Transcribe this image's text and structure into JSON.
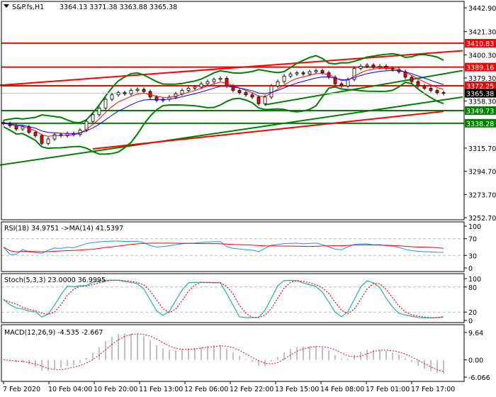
{
  "header": {
    "symbol": "S&P.fs,H1",
    "ohlc": "3364.13 3371.38 3363.88 3365.38"
  },
  "colors": {
    "red": "#ff0000",
    "green": "#008000",
    "blue": "#0000ff",
    "teal": "#20b2aa",
    "black": "#000000"
  },
  "chart_data": [
    {
      "type": "candlestick",
      "title": "S&P.fs,H1",
      "ylim": [
        3252.7,
        3442.9
      ],
      "y_ticks": [
        3442.9,
        3421.3,
        3400.3,
        3379.3,
        3358.3,
        3315.7,
        3294.7,
        3273.7,
        3252.7
      ],
      "x_ticks": [
        "7 Feb 2020",
        "10 Feb 04:00",
        "10 Feb 20:00",
        "11 Feb 13:00",
        "12 Feb 06:00",
        "12 Feb 22:00",
        "13 Feb 15:00",
        "14 Feb 08:00",
        "17 Feb 01:00",
        "17 Feb 17:00"
      ],
      "close": [
        3338,
        3336,
        3333,
        3335,
        3330,
        3327,
        3320,
        3324,
        3328,
        3327,
        3329,
        3328,
        3332,
        3340,
        3346,
        3352,
        3360,
        3364,
        3366,
        3365,
        3368,
        3369,
        3367,
        3362,
        3359,
        3360,
        3362,
        3365,
        3368,
        3370,
        3371,
        3374,
        3376,
        3378,
        3379,
        3372,
        3368,
        3366,
        3364,
        3362,
        3356,
        3362,
        3372,
        3376,
        3381,
        3383,
        3384,
        3383,
        3385,
        3386,
        3384,
        3380,
        3374,
        3372,
        3378,
        3388,
        3390,
        3391,
        3389,
        3390,
        3388,
        3387,
        3385,
        3380,
        3376,
        3372,
        3370,
        3368,
        3366,
        3365.38
      ],
      "last_price": {
        "value": "3365.38"
      },
      "levels": [
        {
          "value": "3410.83",
          "color": "red"
        },
        {
          "value": "3389.16",
          "color": "red"
        },
        {
          "value": "3372.25",
          "color": "red"
        },
        {
          "value": "3349.73",
          "color": "green"
        },
        {
          "value": "3338.28",
          "color": "green"
        }
      ],
      "trendlines": [
        {
          "from": [
            -1,
            3372.5
          ],
          "to": [
            72,
            3404
          ],
          "color": "red"
        },
        {
          "from": [
            -1,
            3300
          ],
          "to": [
            72,
            3362
          ],
          "color": "green"
        },
        {
          "from": [
            14,
            3315
          ],
          "to": [
            69,
            3349
          ],
          "color": "red"
        },
        {
          "from": [
            41,
            3355
          ],
          "to": [
            72,
            3386
          ],
          "color": "green"
        }
      ]
    },
    {
      "type": "line",
      "title": "RSI(18) 34.9751  ->MA(14) 41.5397",
      "label": "RSI(18) 34.9751  ->MA(14) 41.5397",
      "ylim": [
        0,
        100
      ],
      "y_ticks": [
        "100",
        "70",
        "30",
        "0"
      ],
      "levels": [
        70,
        30
      ]
    },
    {
      "type": "line",
      "title": "Stoch(5,3,3) 23.0000 36.9995",
      "label": "Stoch(5,3,3) 23.0000 36.9995",
      "ylim": [
        0,
        100
      ],
      "y_ticks": [
        "100",
        "80",
        "20",
        "0"
      ],
      "levels": [
        80,
        20
      ]
    },
    {
      "type": "bar",
      "title": "MACD(12,26,9) -4.535 -2.667",
      "label": "MACD(12,26,9) -4.535 -2.667",
      "ylim": [
        -6.066,
        9.64
      ],
      "y_ticks": [
        "9.64",
        "0.00",
        "-6.066"
      ]
    }
  ]
}
